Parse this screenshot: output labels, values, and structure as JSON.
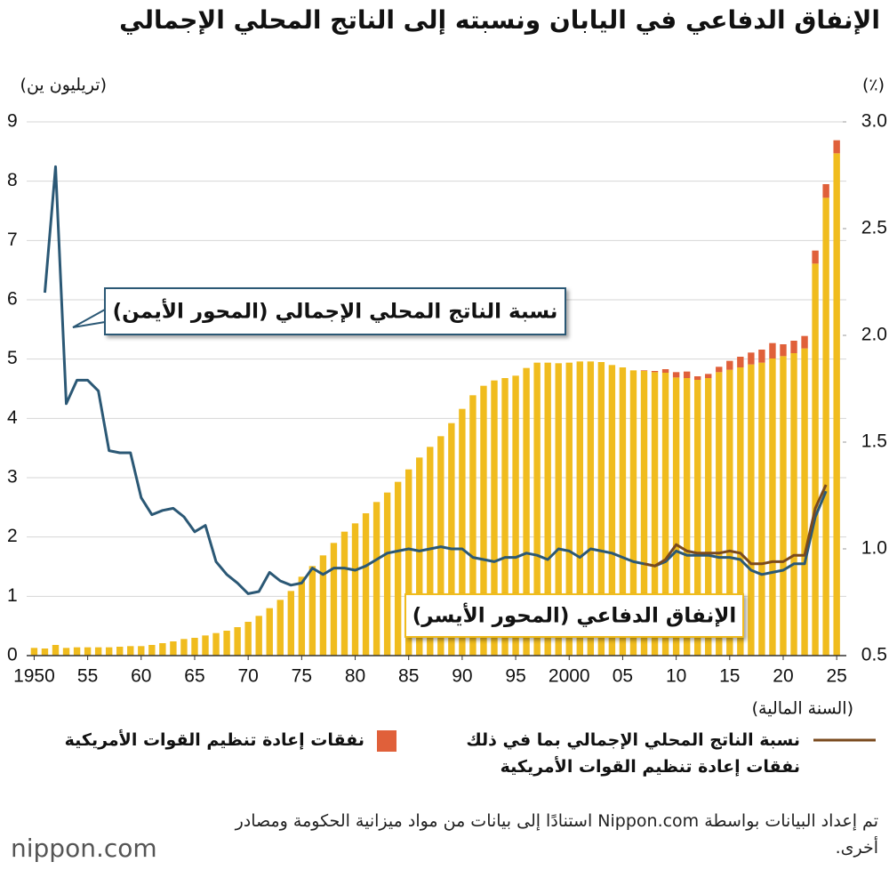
{
  "chart_data": {
    "type": "bar",
    "title": "الإنفاق الدفاعي في اليابان ونسبته إلى الناتج المحلي الإجمالي",
    "y_label": "(تريليون ين)",
    "y2_label": "(٪)",
    "x_label": "(السنة المالية)",
    "x": [
      1950,
      1951,
      1952,
      1953,
      1954,
      1955,
      1956,
      1957,
      1958,
      1959,
      1960,
      1961,
      1962,
      1963,
      1964,
      1965,
      1966,
      1967,
      1968,
      1969,
      1970,
      1971,
      1972,
      1973,
      1974,
      1975,
      1976,
      1977,
      1978,
      1979,
      1980,
      1981,
      1982,
      1983,
      1984,
      1985,
      1986,
      1987,
      1988,
      1989,
      1990,
      1991,
      1992,
      1993,
      1994,
      1995,
      1996,
      1997,
      1998,
      1999,
      2000,
      2001,
      2002,
      2003,
      2004,
      2005,
      2006,
      2007,
      2008,
      2009,
      2010,
      2011,
      2012,
      2013,
      2014,
      2015,
      2016,
      2017,
      2018,
      2019,
      2020,
      2021,
      2022,
      2023,
      2024,
      2025
    ],
    "series": [
      {
        "name": "الإنفاق الدفاعي (المحور الأيسر)",
        "type": "bar",
        "color": "#f0bc1e",
        "values": [
          0.13,
          0.12,
          0.18,
          0.13,
          0.14,
          0.14,
          0.14,
          0.14,
          0.15,
          0.16,
          0.16,
          0.18,
          0.21,
          0.24,
          0.28,
          0.3,
          0.34,
          0.38,
          0.42,
          0.48,
          0.57,
          0.67,
          0.8,
          0.94,
          1.09,
          1.33,
          1.51,
          1.69,
          1.9,
          2.09,
          2.23,
          2.4,
          2.59,
          2.75,
          2.93,
          3.14,
          3.34,
          3.52,
          3.7,
          3.92,
          4.16,
          4.39,
          4.55,
          4.64,
          4.68,
          4.72,
          4.85,
          4.94,
          4.94,
          4.93,
          4.94,
          4.96,
          4.96,
          4.95,
          4.9,
          4.86,
          4.81,
          4.8,
          4.78,
          4.77,
          4.69,
          4.68,
          4.65,
          4.68,
          4.78,
          4.82,
          4.86,
          4.91,
          4.94,
          5.01,
          5.05,
          5.1,
          5.18,
          6.61,
          7.72,
          8.47
        ]
      },
      {
        "name": "نفقات إعادة تنظيم القوات الأمريكية",
        "type": "stack",
        "color": "#e0603a",
        "values": [
          null,
          null,
          null,
          null,
          null,
          null,
          null,
          null,
          null,
          null,
          null,
          null,
          null,
          null,
          null,
          null,
          null,
          null,
          null,
          null,
          null,
          null,
          null,
          null,
          null,
          null,
          null,
          null,
          null,
          null,
          null,
          null,
          null,
          null,
          null,
          null,
          null,
          null,
          null,
          null,
          null,
          null,
          null,
          null,
          null,
          null,
          null,
          null,
          null,
          null,
          null,
          null,
          null,
          null,
          null,
          null,
          null,
          0.01,
          0.02,
          0.06,
          0.09,
          0.11,
          0.06,
          0.07,
          0.09,
          0.15,
          0.18,
          0.2,
          0.22,
          0.26,
          0.2,
          0.21,
          0.21,
          0.22,
          0.23,
          0.22
        ]
      },
      {
        "name": "نسبة الناتج المحلي الإجمالي (المحور الأيمن)",
        "type": "line",
        "axis": "y2",
        "color": "#2b5875",
        "values": [
          null,
          2.2,
          2.79,
          1.68,
          1.79,
          1.79,
          1.74,
          1.46,
          1.45,
          1.45,
          1.24,
          1.16,
          1.18,
          1.19,
          1.15,
          1.08,
          1.11,
          0.94,
          0.88,
          0.84,
          0.79,
          0.8,
          0.89,
          0.85,
          0.83,
          0.84,
          0.91,
          0.88,
          0.91,
          0.91,
          0.9,
          0.92,
          0.95,
          0.98,
          0.99,
          1.0,
          0.99,
          1.0,
          1.01,
          1.0,
          1.0,
          0.96,
          0.95,
          0.94,
          0.96,
          0.96,
          0.98,
          0.97,
          0.95,
          1.0,
          0.99,
          0.96,
          1.0,
          0.99,
          0.98,
          0.96,
          0.94,
          0.93,
          0.92,
          0.94,
          0.99,
          0.97,
          0.97,
          0.97,
          0.96,
          0.96,
          0.95,
          0.9,
          0.88,
          0.89,
          0.9,
          0.93,
          0.93,
          1.15,
          1.27,
          null
        ]
      },
      {
        "name": "نسبة الناتج المحلي الإجمالي بما في ذلك نفقات إعادة تنظيم القوات الأمريكية",
        "type": "line",
        "axis": "y2",
        "color": "#7a4a1e",
        "values": [
          null,
          null,
          null,
          null,
          null,
          null,
          null,
          null,
          null,
          null,
          null,
          null,
          null,
          null,
          null,
          null,
          null,
          null,
          null,
          null,
          null,
          null,
          null,
          null,
          null,
          null,
          null,
          null,
          null,
          null,
          null,
          null,
          null,
          null,
          null,
          null,
          null,
          null,
          null,
          null,
          null,
          null,
          null,
          null,
          null,
          null,
          null,
          null,
          null,
          null,
          null,
          null,
          null,
          null,
          null,
          null,
          null,
          0.93,
          0.92,
          0.95,
          1.02,
          0.99,
          0.98,
          0.98,
          0.98,
          0.99,
          0.98,
          0.93,
          0.93,
          0.94,
          0.94,
          0.97,
          0.97,
          1.19,
          1.3,
          null
        ]
      }
    ],
    "xlim": [
      1949.3,
      2025.9
    ],
    "xticks": [
      1950,
      {
        "value": 1955,
        "label": "55"
      },
      {
        "value": 1960,
        "label": "60"
      },
      {
        "value": 1965,
        "label": "65"
      },
      {
        "value": 1970,
        "label": "70"
      },
      {
        "value": 1975,
        "label": "75"
      },
      {
        "value": 1980,
        "label": "80"
      },
      {
        "value": 1985,
        "label": "85"
      },
      {
        "value": 1990,
        "label": "90"
      },
      {
        "value": 1995,
        "label": "95"
      },
      2000,
      {
        "value": 2005,
        "label": "05"
      },
      {
        "value": 2010,
        "label": "10"
      },
      {
        "value": 2015,
        "label": "15"
      },
      {
        "value": 2020,
        "label": "20"
      },
      {
        "value": 2025,
        "label": "25"
      }
    ],
    "ylim": [
      0,
      9
    ],
    "yticks": [
      0,
      1,
      2,
      3,
      4,
      5,
      6,
      7,
      8,
      9
    ],
    "y2lim": [
      0.5,
      3
    ],
    "y2ticks": [
      0.5,
      {
        "value": 1,
        "label": "1.0"
      },
      1.5,
      {
        "value": 2,
        "label": "2.0"
      },
      2.5,
      {
        "value": 3,
        "label": "3.0"
      }
    ],
    "grid": true,
    "source": "تم إعداد البيانات بواسطة Nippon.com استنادًا إلى بيانات من مواد ميزانية الحكومة ومصادر أخرى.",
    "logo": "nippon.com"
  }
}
